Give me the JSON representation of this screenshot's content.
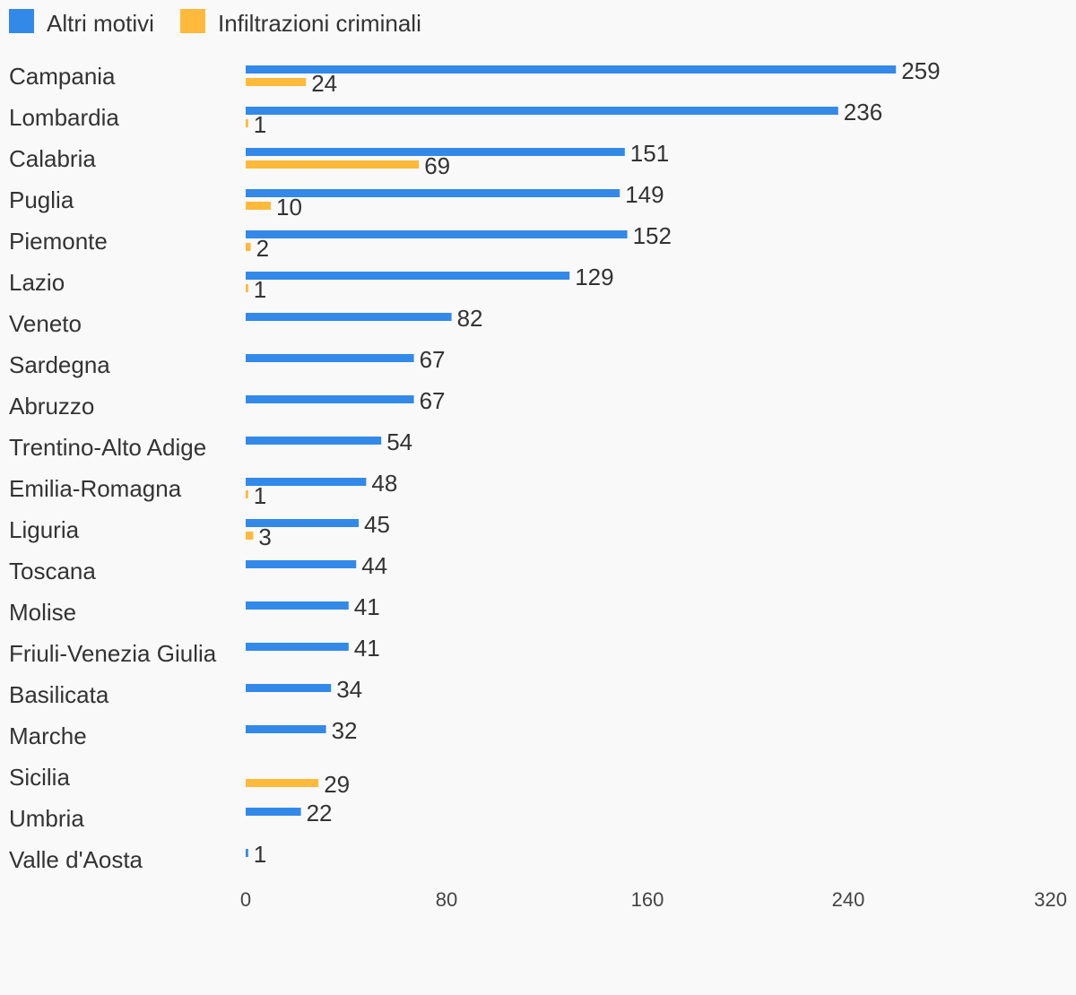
{
  "chart_data": {
    "type": "bar",
    "orientation": "horizontal",
    "title": "",
    "xlabel": "",
    "ylabel": "",
    "xlim": [
      0,
      320
    ],
    "x_ticks": [
      "0",
      "80",
      "160",
      "240",
      "320"
    ],
    "grid": false,
    "legend_position": "top-left",
    "categories": [
      "Campania",
      "Lombardia",
      "Calabria",
      "Puglia",
      "Piemonte",
      "Lazio",
      "Veneto",
      "Sardegna",
      "Abruzzo",
      "Trentino-Alto Adige",
      "Emilia-Romagna",
      "Liguria",
      "Toscana",
      "Molise",
      "Friuli-Venezia Giulia",
      "Basilicata",
      "Marche",
      "Sicilia",
      "Umbria",
      "Valle d'Aosta"
    ],
    "series": [
      {
        "name": "Altri motivi",
        "color": "#3389e8",
        "values": [
          259,
          236,
          151,
          149,
          152,
          129,
          82,
          67,
          67,
          54,
          48,
          45,
          44,
          41,
          41,
          34,
          32,
          null,
          22,
          1
        ]
      },
      {
        "name": "Infiltrazioni criminali",
        "color": "#ffb93b",
        "values": [
          24,
          1,
          69,
          10,
          2,
          1,
          null,
          null,
          null,
          null,
          1,
          3,
          null,
          null,
          null,
          null,
          null,
          29,
          null,
          null
        ]
      }
    ]
  }
}
